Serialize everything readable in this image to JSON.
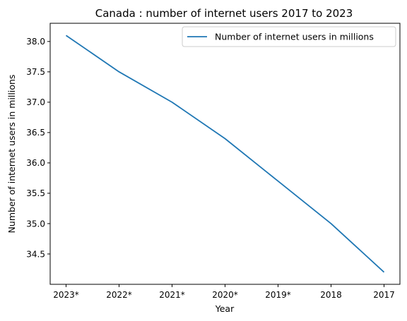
{
  "chart_data": {
    "type": "line",
    "title": "Canada : number of internet users 2017 to 2023",
    "xlabel": "Year",
    "ylabel": "Number of internet users in millions",
    "categories": [
      "2023*",
      "2022*",
      "2021*",
      "2020*",
      "2019*",
      "2018",
      "2017"
    ],
    "series": [
      {
        "name": "Number of internet users in millions",
        "values": [
          38.1,
          37.5,
          37.0,
          36.4,
          35.7,
          35.0,
          34.2
        ],
        "color": "#1f77b4"
      }
    ],
    "ylim": [
      34.0,
      38.3
    ],
    "yticks": [
      "34.5",
      "35.0",
      "35.5",
      "36.0",
      "36.5",
      "37.0",
      "37.5",
      "38.0"
    ],
    "grid": false,
    "legend_position": "top-right"
  }
}
